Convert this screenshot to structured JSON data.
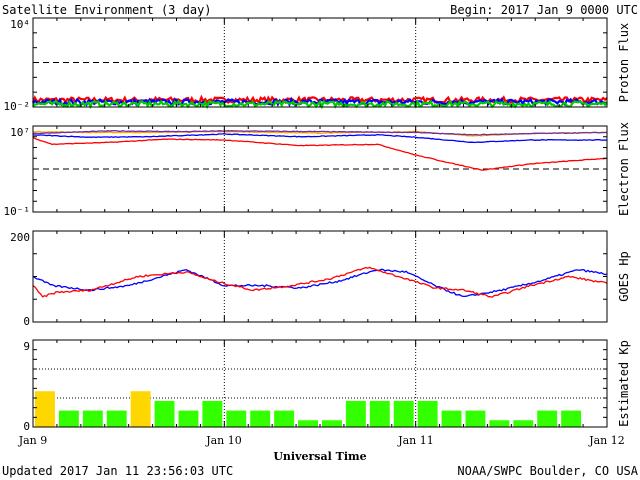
{
  "header": {
    "title": "Satellite Environment (3 day)",
    "begin": "Begin:  2017 Jan 9 0000 UTC"
  },
  "footer": {
    "updated": "Updated 2017 Jan 11 23:56:03 UTC",
    "credit": "NOAA/SWPC Boulder, CO USA"
  },
  "chart_data": [
    {
      "type": "line",
      "ylabel": "Proton Flux",
      "yscale": "log",
      "ylim": [
        0.01,
        10000
      ],
      "ytick_labels": [
        "10⁴",
        "10⁻²"
      ],
      "threshold": 10,
      "x_days": [
        0,
        3
      ],
      "series": [
        {
          "color": "#ff0000",
          "level": 0.03
        },
        {
          "color": "#0000ff",
          "level": 0.022
        },
        {
          "color": "#00cc00",
          "level": 0.016
        }
      ]
    },
    {
      "type": "line",
      "ylabel": "Electron Flux",
      "yscale": "log",
      "ylim": [
        0.1,
        10000000
      ],
      "ytick_labels": [
        "10⁷",
        "10⁻¹"
      ],
      "threshold": 1000,
      "series": [
        {
          "color": "#ffa500",
          "x": [
            0,
            0.3,
            0.6,
            1.0,
            1.5,
            2.0,
            2.3,
            2.6,
            3.0
          ],
          "y": [
            3000000,
            2500000,
            2500000,
            3000000,
            2200000,
            3000000,
            1200000,
            2000000,
            2500000
          ]
        },
        {
          "color": "#0000ff",
          "x": [
            0,
            0.3,
            0.6,
            1.0,
            1.4,
            1.8,
            2.0,
            2.3,
            2.6,
            3.0
          ],
          "y": [
            1500000,
            900000,
            1000000,
            1800000,
            1000000,
            1500000,
            900000,
            300000,
            500000,
            500000
          ]
        },
        {
          "color": "#7030a0",
          "x": [
            0,
            0.4,
            0.8,
            1.0,
            1.5,
            2.0,
            2.3,
            2.6,
            3.0
          ],
          "y": [
            2000000,
            3500000,
            3000000,
            3500000,
            3000000,
            2500000,
            1500000,
            2000000,
            2500000
          ]
        },
        {
          "color": "#ff0000",
          "x": [
            0,
            0.1,
            0.4,
            0.7,
            1.0,
            1.4,
            1.8,
            2.0,
            2.2,
            2.35,
            2.6,
            3.0
          ],
          "y": [
            800000,
            200000,
            300000,
            600000,
            500000,
            150000,
            200000,
            20000,
            3000,
            800,
            3000,
            10000
          ]
        }
      ]
    },
    {
      "type": "line",
      "ylabel": "GOES Hp",
      "ylim": [
        0,
        200
      ],
      "ytick_labels": [
        "200",
        "0"
      ],
      "series": [
        {
          "color": "#0000ff",
          "x": [
            0,
            0.1,
            0.3,
            0.5,
            0.8,
            1.0,
            1.2,
            1.4,
            1.6,
            1.8,
            1.95,
            2.1,
            2.25,
            2.45,
            2.65,
            2.85,
            3.0
          ],
          "y": [
            100,
            80,
            70,
            80,
            115,
            80,
            80,
            75,
            90,
            115,
            110,
            80,
            55,
            70,
            90,
            115,
            105
          ]
        },
        {
          "color": "#ff0000",
          "x": [
            0,
            0.05,
            0.12,
            0.3,
            0.55,
            0.8,
            0.95,
            1.15,
            1.35,
            1.55,
            1.75,
            1.95,
            2.1,
            2.25,
            2.4,
            2.6,
            2.8,
            3.0
          ],
          "y": [
            80,
            55,
            65,
            70,
            100,
            110,
            90,
            70,
            80,
            95,
            120,
            95,
            75,
            70,
            55,
            80,
            100,
            85
          ]
        }
      ]
    },
    {
      "type": "bar",
      "ylabel": "Estimated Kp",
      "ylim": [
        0,
        9
      ],
      "ytick_labels": [
        "9",
        "0"
      ],
      "grid_levels": [
        3,
        6,
        9
      ],
      "colors": {
        "quiet": "#33ff00",
        "unsettled": "#ffd700"
      },
      "values": [
        3.7,
        1.7,
        1.7,
        1.7,
        3.7,
        2.7,
        1.7,
        2.7,
        1.7,
        1.7,
        1.7,
        0.7,
        0.7,
        2.7,
        2.7,
        2.7,
        2.7,
        1.7,
        1.7,
        0.7,
        0.7,
        1.7,
        1.7,
        0
      ]
    }
  ],
  "x_axis": {
    "title": "Universal Time",
    "labels": [
      "Jan 9",
      "Jan 10",
      "Jan 11",
      "Jan 12"
    ]
  }
}
